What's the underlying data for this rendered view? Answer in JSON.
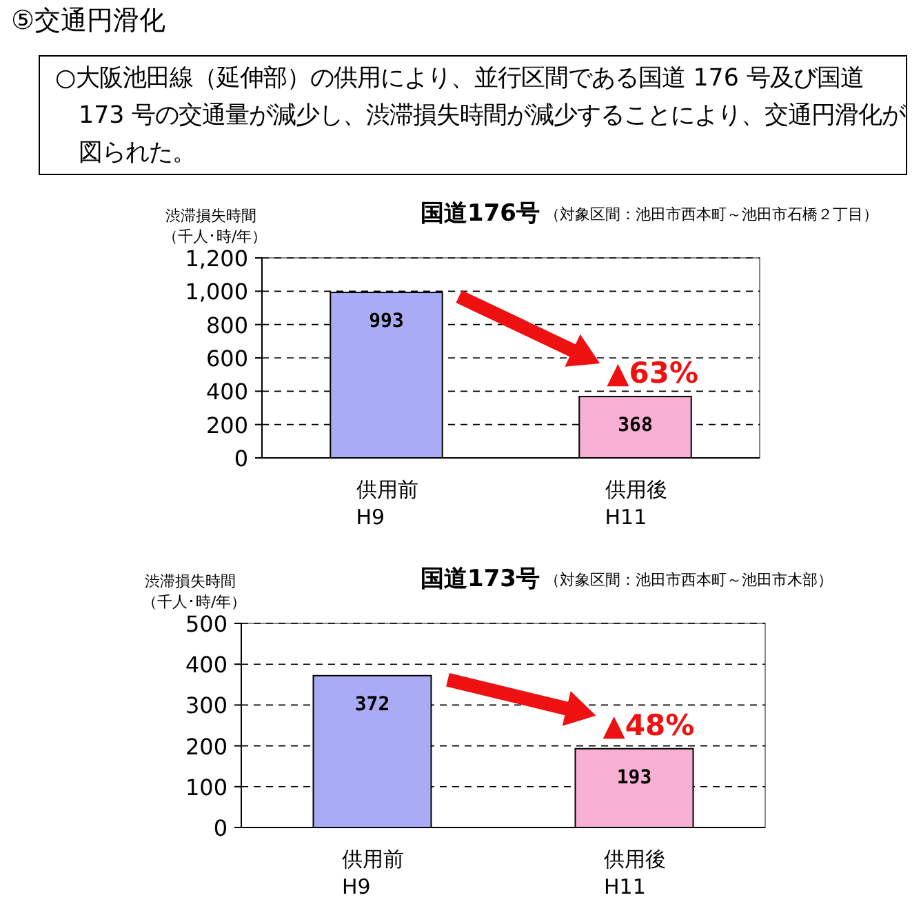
{
  "chart_data": [
    {
      "type": "other",
      "title": "⑤交通円滑化",
      "annotations": [
        "○大阪池田線（延伸部）の供用により、並行区間である国道 176 号及び国道 173 号の交通量が減少し、渋滞損失時間が減少することにより、交通円滑化が図られた。"
      ]
    },
    {
      "type": "bar",
      "title": "国道176号",
      "subtitle": "（対象区間：池田市西本町～池田市石橋２丁目）",
      "ylabel": "渋滞損失時間（千人･時/年）",
      "categories": [
        "供用前\nH9",
        "供用後\nH11"
      ],
      "values": [
        993,
        368
      ],
      "colors": [
        "#a9abf5",
        "#f7b0d3"
      ],
      "ylim": [
        0,
        1200
      ],
      "yticks": [
        0,
        200,
        400,
        600,
        800,
        {
          "value": 1000,
          "label": "1,000"
        },
        {
          "value": 1200,
          "label": "1,200"
        }
      ],
      "grid": "y",
      "data_labels": true,
      "annotations": [
        "▲63%"
      ]
    },
    {
      "type": "bar",
      "title": "国道173号",
      "subtitle": "（対象区間：池田市西本町～池田市木部）",
      "ylabel": "渋滞損失時間（千人･時/年）",
      "categories": [
        "供用前\nH9",
        "供用後\nH11"
      ],
      "values": [
        372,
        193
      ],
      "colors": [
        "#a9abf5",
        "#f7b0d3"
      ],
      "ylim": [
        0,
        500
      ],
      "yticks": [
        0,
        100,
        200,
        300,
        400,
        500
      ],
      "grid": "y",
      "data_labels": true,
      "annotations": [
        "▲48%"
      ]
    }
  ]
}
